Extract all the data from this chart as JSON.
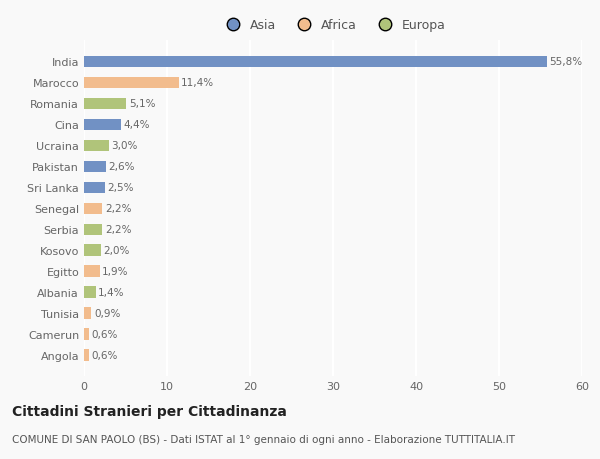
{
  "countries": [
    "India",
    "Marocco",
    "Romania",
    "Cina",
    "Ucraina",
    "Pakistan",
    "Sri Lanka",
    "Senegal",
    "Serbia",
    "Kosovo",
    "Egitto",
    "Albania",
    "Tunisia",
    "Camerun",
    "Angola"
  ],
  "values": [
    55.8,
    11.4,
    5.1,
    4.4,
    3.0,
    2.6,
    2.5,
    2.2,
    2.2,
    2.0,
    1.9,
    1.4,
    0.9,
    0.6,
    0.6
  ],
  "labels": [
    "55,8%",
    "11,4%",
    "5,1%",
    "4,4%",
    "3,0%",
    "2,6%",
    "2,5%",
    "2,2%",
    "2,2%",
    "2,0%",
    "1,9%",
    "1,4%",
    "0,9%",
    "0,6%",
    "0,6%"
  ],
  "colors": [
    "#7191c4",
    "#f2bc8d",
    "#b0c47a",
    "#7191c4",
    "#b0c47a",
    "#7191c4",
    "#7191c4",
    "#f2bc8d",
    "#b0c47a",
    "#b0c47a",
    "#f2bc8d",
    "#b0c47a",
    "#f2bc8d",
    "#f2bc8d",
    "#f2bc8d"
  ],
  "legend_labels": [
    "Asia",
    "Africa",
    "Europa"
  ],
  "legend_colors": [
    "#7191c4",
    "#f2bc8d",
    "#b0c47a"
  ],
  "xlim": [
    0,
    60
  ],
  "xticks": [
    0,
    10,
    20,
    30,
    40,
    50,
    60
  ],
  "title_main": "Cittadini Stranieri per Cittadinanza",
  "title_sub": "COMUNE DI SAN PAOLO (BS) - Dati ISTAT al 1° gennaio di ogni anno - Elaborazione TUTTITALIA.IT",
  "background_color": "#f9f9f9",
  "grid_color": "#ffffff",
  "bar_height": 0.55,
  "label_fontsize": 7.5,
  "tick_fontsize": 8,
  "title_fontsize": 10,
  "subtitle_fontsize": 7.5
}
